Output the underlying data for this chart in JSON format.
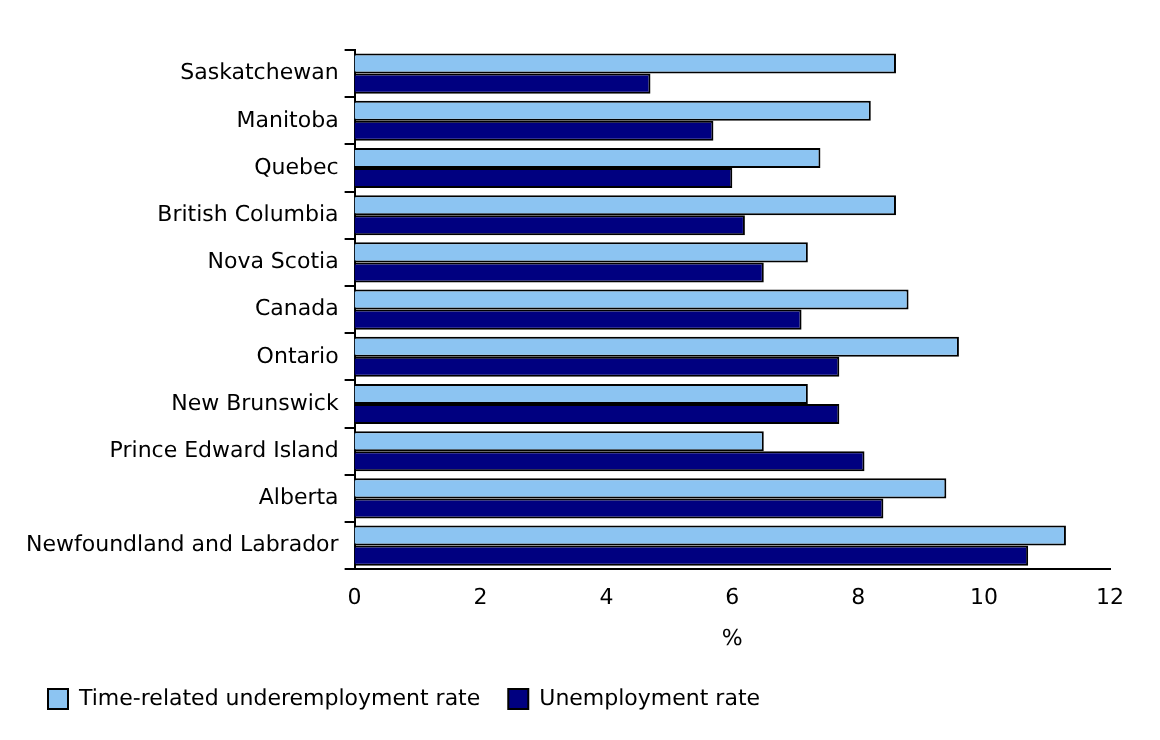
{
  "chart_data": {
    "type": "bar",
    "orientation": "horizontal",
    "xlabel": "%",
    "categories": [
      "Saskatchewan",
      "Manitoba",
      "Quebec",
      "British Columbia",
      "Nova Scotia",
      "Canada",
      "Ontario",
      "New Brunswick",
      "Prince Edward Island",
      "Alberta",
      "Newfoundland and Labrador"
    ],
    "series": [
      {
        "name": "Time-related underemployment rate",
        "color": "#8cc4f2",
        "values": [
          8.6,
          8.2,
          7.4,
          8.6,
          7.2,
          8.8,
          9.6,
          7.2,
          6.5,
          9.4,
          11.3
        ]
      },
      {
        "name": "Unemployment rate",
        "color": "#000080",
        "values": [
          4.7,
          5.7,
          6.0,
          6.2,
          6.5,
          7.1,
          7.7,
          7.7,
          8.1,
          8.4,
          10.7
        ]
      }
    ],
    "xlim": [
      0,
      12
    ],
    "xticks": [
      0,
      2,
      4,
      6,
      8,
      10,
      12
    ],
    "grid": false,
    "legend": "bottom"
  }
}
